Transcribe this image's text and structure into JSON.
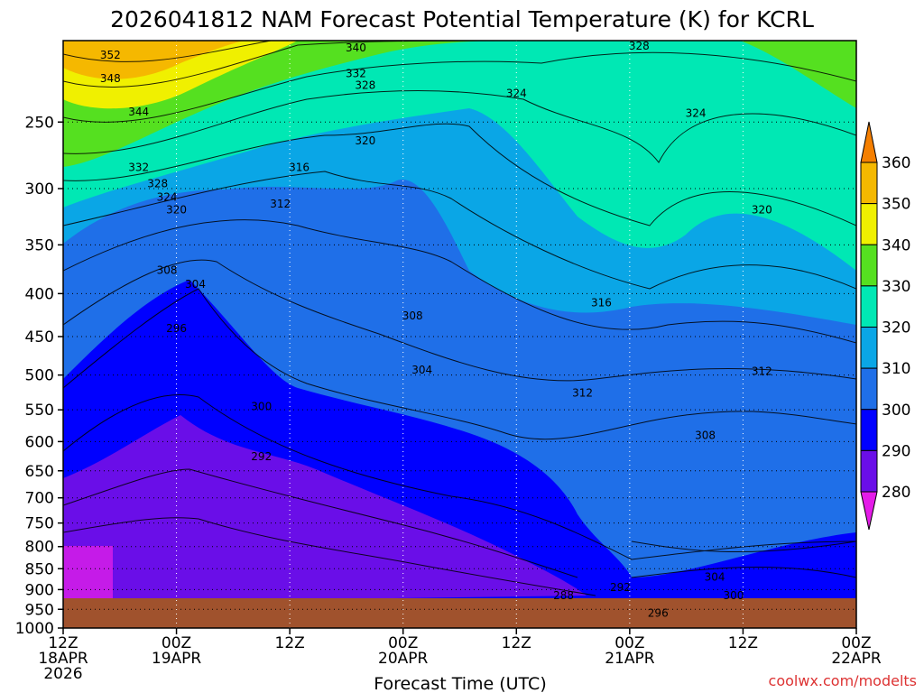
{
  "chart_data": {
    "type": "heatmap",
    "title": "2026041812 NAM Forecast Potential Temperature (K) for KCRL",
    "xlabel": "Forecast Time (UTC)",
    "ylabel": "",
    "ylim": [
      1000,
      200
    ],
    "y_scale": "log-pressure",
    "y_ticks": [
      250,
      300,
      350,
      400,
      450,
      500,
      550,
      600,
      650,
      700,
      750,
      800,
      850,
      900,
      950,
      1000
    ],
    "x_ticks": [
      {
        "hours": 0,
        "l1": "12Z",
        "l2": "18APR",
        "l3": "2026"
      },
      {
        "hours": 12,
        "l1": "00Z",
        "l2": "19APR",
        "l3": ""
      },
      {
        "hours": 24,
        "l1": "12Z",
        "l2": "",
        "l3": ""
      },
      {
        "hours": 36,
        "l1": "00Z",
        "l2": "20APR",
        "l3": ""
      },
      {
        "hours": 48,
        "l1": "12Z",
        "l2": "",
        "l3": ""
      },
      {
        "hours": 60,
        "l1": "00Z",
        "l2": "21APR",
        "l3": ""
      },
      {
        "hours": 72,
        "l1": "12Z",
        "l2": "",
        "l3": ""
      },
      {
        "hours": 84,
        "l1": "00Z",
        "l2": "22APR",
        "l3": ""
      }
    ],
    "xlim": [
      0,
      84
    ],
    "grid": true,
    "colorbar": {
      "levels": [
        280,
        290,
        300,
        310,
        320,
        330,
        340,
        350,
        360
      ],
      "colors": [
        "#8a2be2",
        "#6a0ee8",
        "#0000ff",
        "#1f6fe8",
        "#0aa6e6",
        "#00e8b4",
        "#55e020",
        "#f0f000",
        "#f5b800",
        "#f57f00"
      ],
      "placement": "right"
    },
    "contour_labels": [
      {
        "hours": 5,
        "p": 208,
        "value": "352"
      },
      {
        "hours": 5,
        "p": 222,
        "value": "348"
      },
      {
        "hours": 8,
        "p": 243,
        "value": "344"
      },
      {
        "hours": 8,
        "p": 283,
        "value": "332"
      },
      {
        "hours": 10,
        "p": 296,
        "value": "328"
      },
      {
        "hours": 11,
        "p": 307,
        "value": "324"
      },
      {
        "hours": 12,
        "p": 318,
        "value": "320"
      },
      {
        "hours": 23,
        "p": 313,
        "value": "312"
      },
      {
        "hours": 25,
        "p": 283,
        "value": "316"
      },
      {
        "hours": 32,
        "p": 263,
        "value": "320"
      },
      {
        "hours": 31,
        "p": 204,
        "value": "340"
      },
      {
        "hours": 31,
        "p": 219,
        "value": "332"
      },
      {
        "hours": 32,
        "p": 226,
        "value": "328"
      },
      {
        "hours": 48,
        "p": 231,
        "value": "324"
      },
      {
        "hours": 61,
        "p": 203,
        "value": "328"
      },
      {
        "hours": 67,
        "p": 244,
        "value": "324"
      },
      {
        "hours": 74,
        "p": 318,
        "value": "320"
      },
      {
        "hours": 11,
        "p": 375,
        "value": "308"
      },
      {
        "hours": 14,
        "p": 390,
        "value": "304"
      },
      {
        "hours": 12,
        "p": 440,
        "value": "296"
      },
      {
        "hours": 21,
        "p": 545,
        "value": "300"
      },
      {
        "hours": 21,
        "p": 625,
        "value": "292"
      },
      {
        "hours": 37,
        "p": 425,
        "value": "308"
      },
      {
        "hours": 38,
        "p": 493,
        "value": "304"
      },
      {
        "hours": 57,
        "p": 410,
        "value": "316"
      },
      {
        "hours": 55,
        "p": 525,
        "value": "312"
      },
      {
        "hours": 74,
        "p": 495,
        "value": "312"
      },
      {
        "hours": 68,
        "p": 590,
        "value": "308"
      },
      {
        "hours": 69,
        "p": 870,
        "value": "304"
      },
      {
        "hours": 71,
        "p": 915,
        "value": "300"
      },
      {
        "hours": 59,
        "p": 895,
        "value": "292"
      },
      {
        "hours": 53,
        "p": 915,
        "value": "288"
      },
      {
        "hours": 63,
        "p": 960,
        "value": "296"
      }
    ]
  },
  "credit": "coolwx.com/modelts"
}
